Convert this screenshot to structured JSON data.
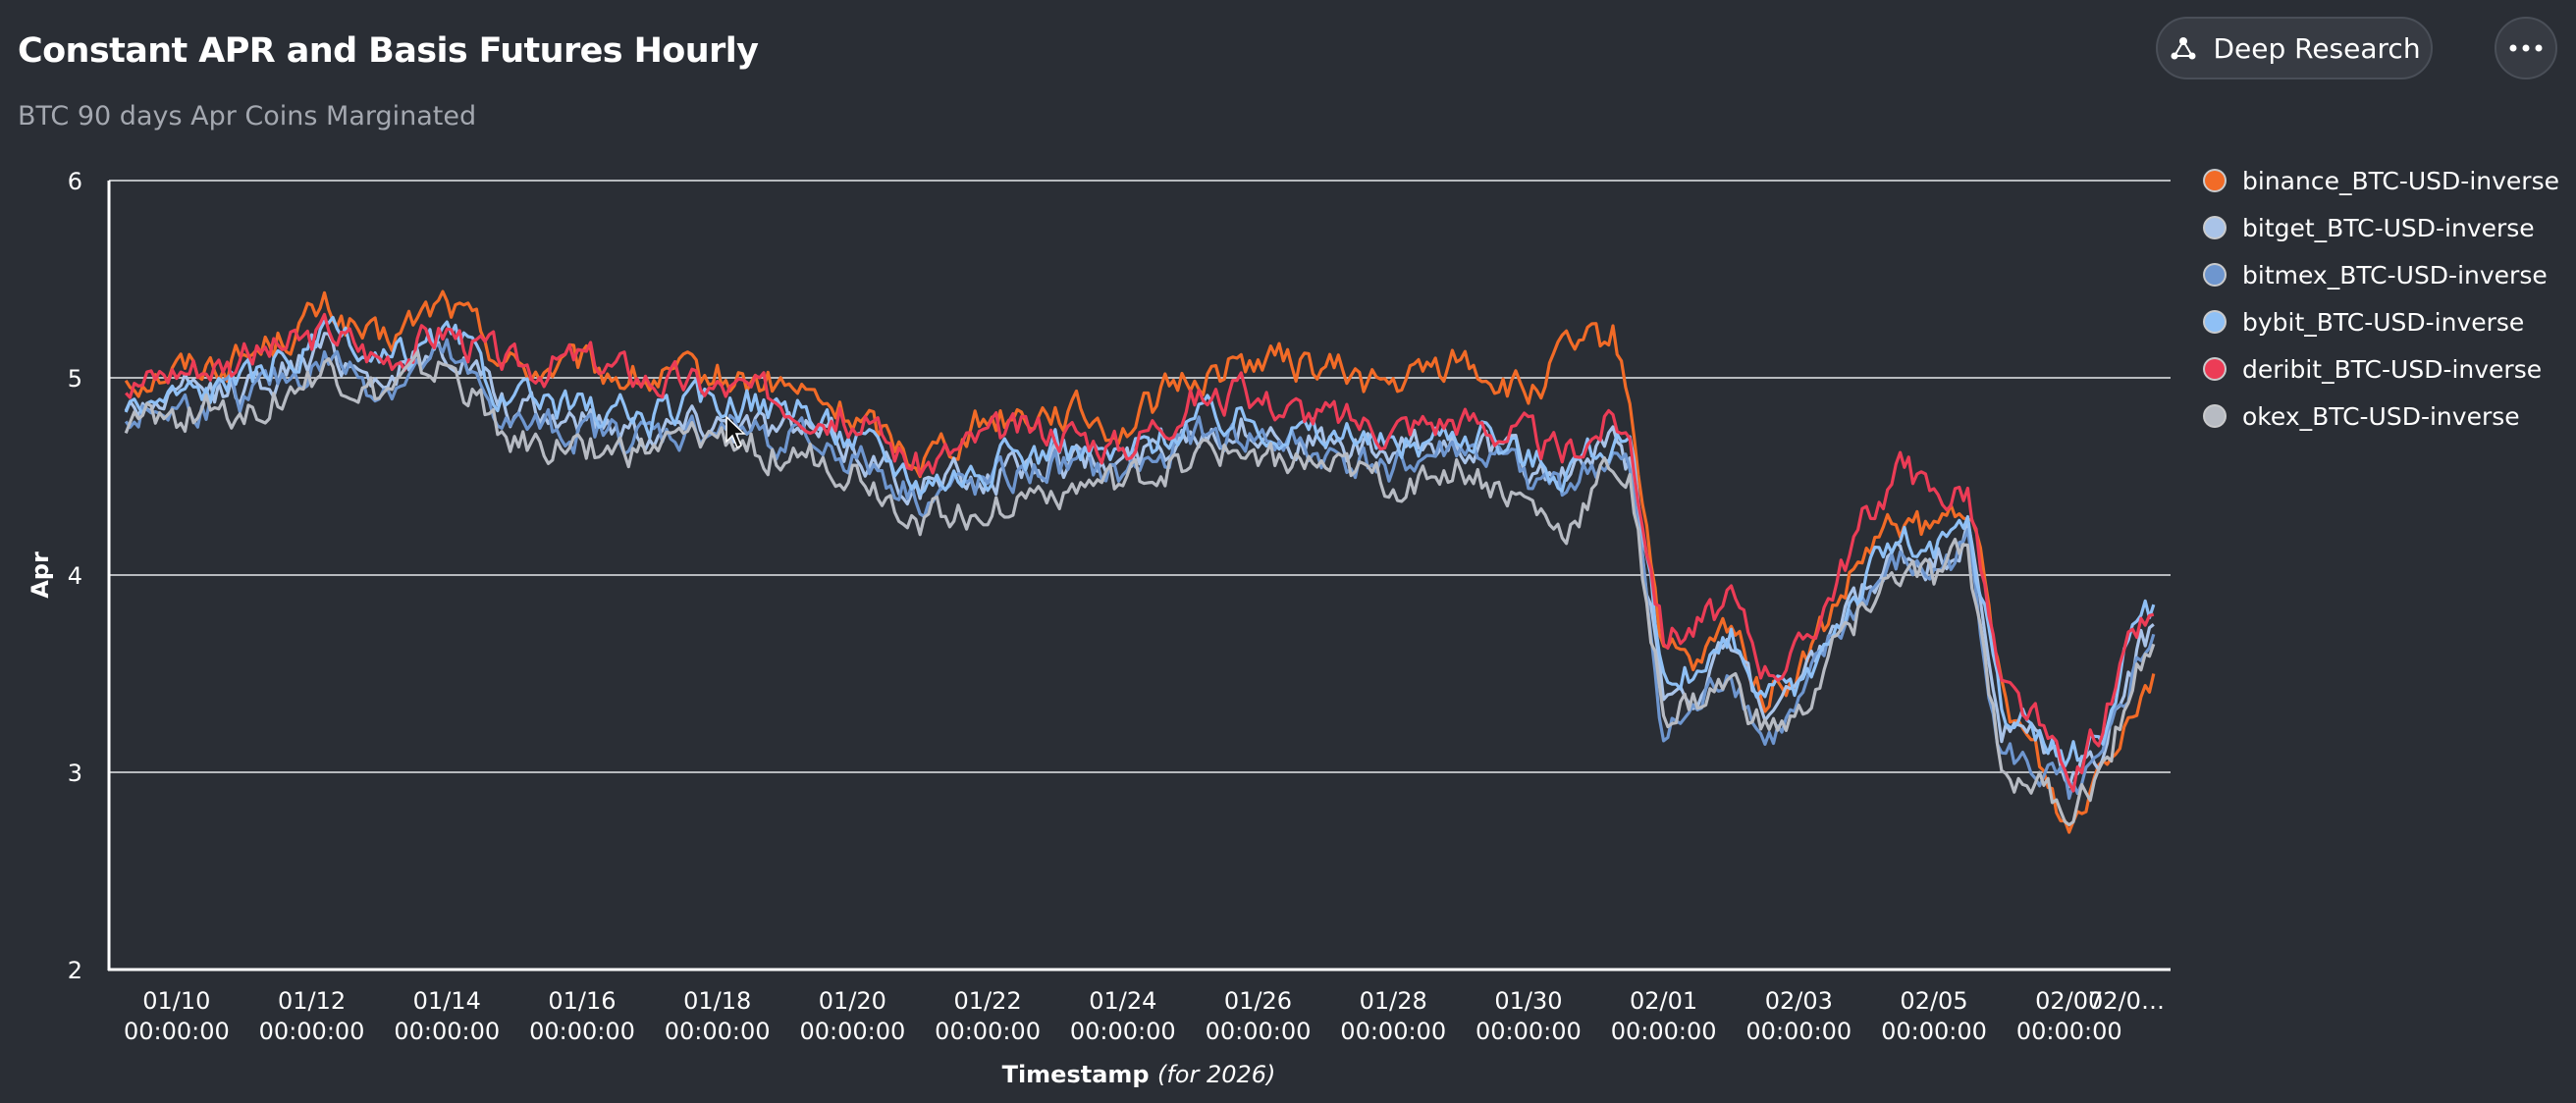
{
  "header": {
    "title": "Constant APR and Basis Futures Hourly",
    "subtitle": "BTC 90 days Apr Coins Marginated",
    "deep_research_label": "Deep Research",
    "deep_research_icon": "network-nodes-icon",
    "more_icon": "ellipsis-icon"
  },
  "chart_data": {
    "type": "line",
    "title": "Constant APR and Basis Futures Hourly",
    "subtitle": "BTC 90 days Apr Coins Marginated",
    "xlabel": "Timestamp",
    "xlabel_note": "(for 2026)",
    "ylabel": "Apr",
    "ylim": [
      2,
      6
    ],
    "yticks": [
      "2",
      "3",
      "4",
      "5",
      "6"
    ],
    "xlim": [
      "2026-01-09 00:00",
      "2026-02-08 12:00"
    ],
    "xticks": [
      {
        "label": "01/10",
        "sub": "00:00:00"
      },
      {
        "label": "01/12",
        "sub": "00:00:00"
      },
      {
        "label": "01/14",
        "sub": "00:00:00"
      },
      {
        "label": "01/16",
        "sub": "00:00:00"
      },
      {
        "label": "01/18",
        "sub": "00:00:00"
      },
      {
        "label": "01/20",
        "sub": "00:00:00"
      },
      {
        "label": "01/22",
        "sub": "00:00:00"
      },
      {
        "label": "01/24",
        "sub": "00:00:00"
      },
      {
        "label": "01/26",
        "sub": "00:00:00"
      },
      {
        "label": "01/28",
        "sub": "00:00:00"
      },
      {
        "label": "01/30",
        "sub": "00:00:00"
      },
      {
        "label": "02/01",
        "sub": "00:00:00"
      },
      {
        "label": "02/03",
        "sub": "00:00:00"
      },
      {
        "label": "02/05",
        "sub": "00:00:00"
      },
      {
        "label": "02/07",
        "sub": "00:00:00"
      },
      {
        "label": "02/0…",
        "sub": ""
      }
    ],
    "grid": "horizontal",
    "legend_position": "right",
    "x": [
      "2026-01-09 06:00",
      "2026-01-10 00:00",
      "2026-01-11 00:00",
      "2026-01-12 00:00",
      "2026-01-12 06:00",
      "2026-01-13 00:00",
      "2026-01-14 00:00",
      "2026-01-14 06:00",
      "2026-01-15 00:00",
      "2026-01-16 00:00",
      "2026-01-17 00:00",
      "2026-01-18 00:00",
      "2026-01-19 00:00",
      "2026-01-20 00:00",
      "2026-01-21 00:00",
      "2026-01-22 00:00",
      "2026-01-23 00:00",
      "2026-01-24 00:00",
      "2026-01-25 00:00",
      "2026-01-26 00:00",
      "2026-01-27 00:00",
      "2026-01-28 00:00",
      "2026-01-29 00:00",
      "2026-01-30 00:00",
      "2026-01-30 12:00",
      "2026-01-31 06:00",
      "2026-01-31 12:00",
      "2026-02-01 00:00",
      "2026-02-01 12:00",
      "2026-02-02 00:00",
      "2026-02-02 12:00",
      "2026-02-03 00:00",
      "2026-02-03 12:00",
      "2026-02-04 00:00",
      "2026-02-04 12:00",
      "2026-02-05 00:00",
      "2026-02-05 12:00",
      "2026-02-06 00:00",
      "2026-02-06 12:00",
      "2026-02-07 00:00",
      "2026-02-07 12:00",
      "2026-02-08 00:00",
      "2026-02-08 06:00"
    ],
    "series": [
      {
        "name": "binance_BTC-USD-inverse",
        "color": "#f26b27",
        "values": [
          5.0,
          5.05,
          5.1,
          5.3,
          5.35,
          5.15,
          5.4,
          5.3,
          5.05,
          5.05,
          4.98,
          5.0,
          4.95,
          4.8,
          4.6,
          4.8,
          4.85,
          4.75,
          5.0,
          5.1,
          5.05,
          4.95,
          5.1,
          4.9,
          5.1,
          5.2,
          4.9,
          3.6,
          3.5,
          3.75,
          3.4,
          3.5,
          3.8,
          4.1,
          4.25,
          4.2,
          4.4,
          3.4,
          3.1,
          2.7,
          3.1,
          3.4,
          3.5
        ]
      },
      {
        "name": "bitget_BTC-USD-inverse",
        "color": "#a9c3e8",
        "values": [
          4.85,
          4.9,
          4.95,
          5.1,
          5.15,
          5.0,
          5.15,
          5.1,
          4.8,
          4.8,
          4.75,
          4.8,
          4.75,
          4.65,
          4.45,
          4.5,
          4.6,
          4.55,
          4.75,
          4.75,
          4.65,
          4.6,
          4.7,
          4.55,
          4.5,
          4.65,
          4.55,
          3.4,
          3.45,
          3.6,
          3.3,
          3.35,
          3.7,
          3.9,
          4.1,
          4.05,
          4.2,
          3.2,
          3.15,
          3.0,
          3.1,
          3.6,
          3.75
        ]
      },
      {
        "name": "bitmex_BTC-USD-inverse",
        "color": "#6e96cf",
        "values": [
          4.8,
          4.85,
          4.9,
          5.05,
          5.1,
          4.95,
          5.1,
          5.0,
          4.75,
          4.72,
          4.7,
          4.75,
          4.7,
          4.6,
          4.4,
          4.45,
          4.55,
          4.5,
          4.7,
          4.7,
          4.6,
          4.55,
          4.65,
          4.5,
          4.45,
          4.6,
          4.5,
          3.2,
          3.3,
          3.55,
          3.15,
          3.3,
          3.65,
          3.9,
          4.05,
          4.0,
          4.15,
          3.1,
          3.0,
          2.9,
          3.0,
          3.55,
          3.7
        ]
      },
      {
        "name": "bybit_BTC-USD-inverse",
        "color": "#8fc0f5",
        "values": [
          4.85,
          4.92,
          4.98,
          5.15,
          5.2,
          5.05,
          5.2,
          5.15,
          4.85,
          4.85,
          4.8,
          4.9,
          4.85,
          4.7,
          4.5,
          4.55,
          4.65,
          4.6,
          4.8,
          4.8,
          4.7,
          4.65,
          4.75,
          4.6,
          4.55,
          4.7,
          4.6,
          3.45,
          3.5,
          3.65,
          3.35,
          3.4,
          3.75,
          4.0,
          4.2,
          4.1,
          4.25,
          3.3,
          3.2,
          3.05,
          3.2,
          3.75,
          3.85
        ]
      },
      {
        "name": "deribit_BTC-USD-inverse",
        "color": "#ec3c56",
        "values": [
          4.95,
          5.05,
          5.1,
          5.2,
          5.25,
          5.1,
          5.25,
          5.2,
          5.05,
          5.1,
          5.0,
          4.95,
          4.9,
          4.8,
          4.55,
          4.7,
          4.75,
          4.65,
          4.9,
          4.9,
          4.8,
          4.75,
          4.8,
          4.7,
          4.6,
          4.8,
          4.7,
          3.7,
          3.75,
          3.85,
          3.55,
          3.6,
          3.95,
          4.3,
          4.55,
          4.4,
          4.45,
          3.4,
          3.25,
          2.9,
          3.25,
          3.7,
          3.8
        ]
      },
      {
        "name": "okex_BTC-USD-inverse",
        "color": "#b7bbc3",
        "values": [
          4.75,
          4.8,
          4.85,
          5.0,
          5.05,
          4.9,
          5.05,
          4.95,
          4.65,
          4.65,
          4.62,
          4.7,
          4.62,
          4.55,
          4.3,
          4.35,
          4.45,
          4.45,
          4.6,
          4.62,
          4.52,
          4.45,
          4.55,
          4.35,
          4.2,
          4.55,
          4.45,
          3.3,
          3.35,
          3.45,
          3.2,
          3.25,
          3.6,
          3.85,
          4.0,
          3.95,
          4.1,
          3.05,
          2.95,
          2.8,
          3.0,
          3.5,
          3.65
        ]
      }
    ]
  }
}
